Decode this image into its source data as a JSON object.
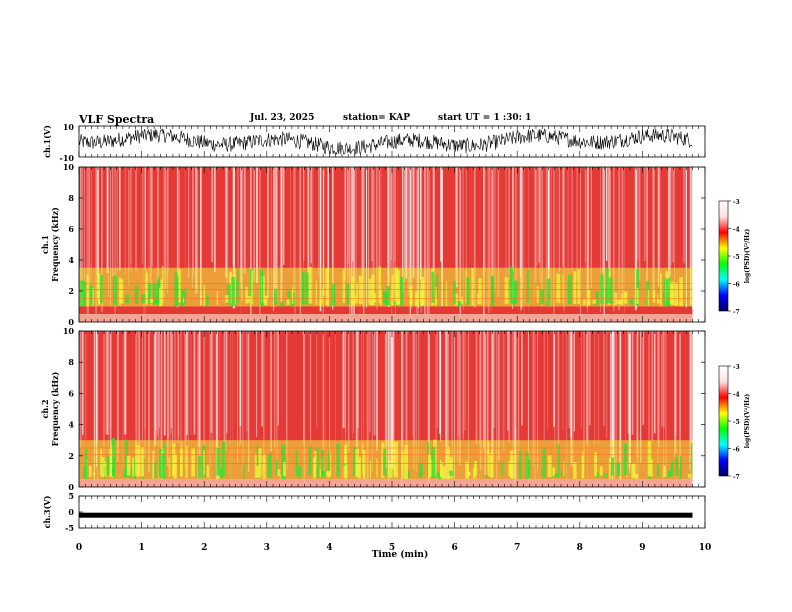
{
  "header": {
    "title": "VLF Spectra",
    "date": "Jul. 23, 2025",
    "station": "station= KAP",
    "start": "start UT =  1 :30: 1"
  },
  "colors": {
    "background": "#ffffff",
    "trace": "#000000",
    "noise_floor": "#e53935",
    "noise_light": "#f29b9b",
    "band_yellow": "#f2f23a",
    "band_green": "#33e033",
    "colormap": [
      "#000060",
      "#0000ff",
      "#00ffff",
      "#00ff00",
      "#ffff00",
      "#ff0000",
      "#ffe0e0",
      "#ffffff"
    ]
  },
  "chart_data": [
    {
      "type": "line",
      "id": "ch1-waveform",
      "ylabel": "ch.1(V)",
      "ylim": [
        -10,
        10
      ],
      "ytick_labels": [
        "10",
        "-10"
      ],
      "xlim": [
        0,
        10
      ],
      "trace_range_V": [
        -8,
        8
      ]
    },
    {
      "type": "heatmap",
      "id": "ch1-spectrogram",
      "ylabel_line1": "ch.1",
      "ylabel_line2": "Frequency (kHz)",
      "ylim": [
        0,
        10
      ],
      "ytick_labels": [
        "0",
        "2",
        "4",
        "6",
        "8",
        "10"
      ],
      "data_end_min": 9.8,
      "activity_bands_kHz": [
        1.0,
        3.5
      ],
      "colorbar": {
        "label": "log(PSD)(V²/Hz)",
        "range": [
          -7,
          -3
        ],
        "tick_labels": [
          "-3",
          "-4",
          "-5",
          "-6",
          "-7"
        ]
      }
    },
    {
      "type": "heatmap",
      "id": "ch2-spectrogram",
      "ylabel_line1": "ch.2",
      "ylabel_line2": "Frequency (kHz)",
      "ylim": [
        0,
        10
      ],
      "ytick_labels": [
        "0",
        "2",
        "4",
        "6",
        "8",
        "10"
      ],
      "data_end_min": 9.8,
      "activity_bands_kHz": [
        0.5,
        3.0
      ],
      "colorbar": {
        "label": "log(PSD)(V²/Hz)",
        "range": [
          -7,
          -3
        ],
        "tick_labels": [
          "-3",
          "-4",
          "-5",
          "-6",
          "-7"
        ]
      }
    },
    {
      "type": "line",
      "id": "ch3-waveform",
      "ylabel": "ch.3(V)",
      "ylim": [
        -5,
        5
      ],
      "ytick_labels": [
        "5",
        "0",
        "-5"
      ],
      "xlim": [
        0,
        10
      ],
      "trace_level_V": -1
    }
  ],
  "xaxis": {
    "label": "Time (min)",
    "tick_labels": [
      "0",
      "1",
      "2",
      "3",
      "4",
      "5",
      "6",
      "7",
      "8",
      "9",
      "10"
    ]
  }
}
